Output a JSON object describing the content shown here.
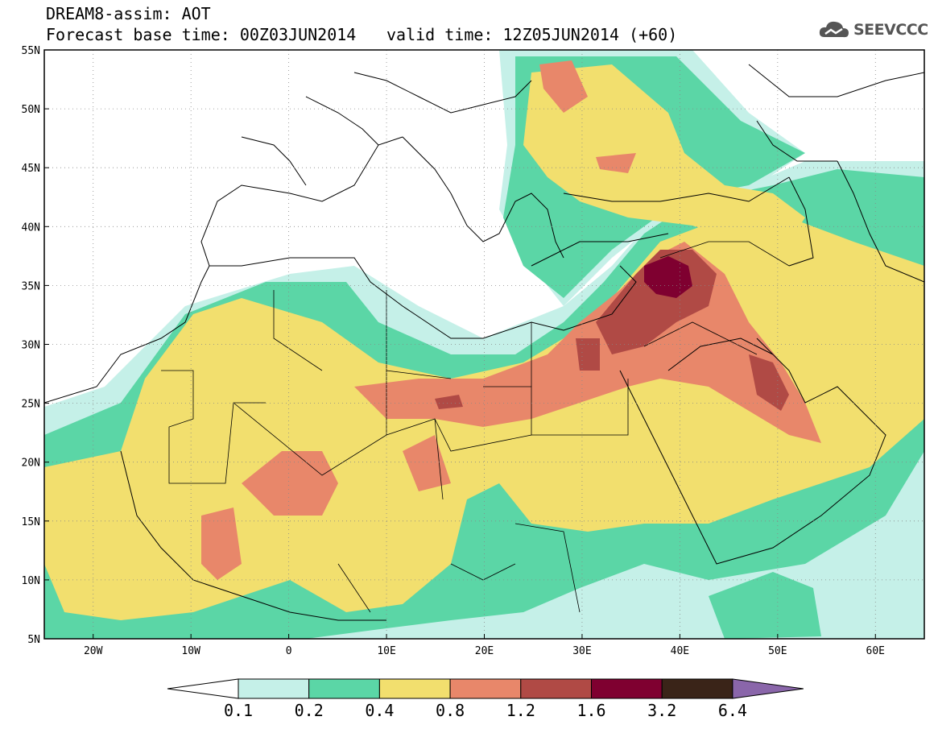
{
  "header": {
    "title": "DREAM8-assim: AOT",
    "base_time": "Forecast base time: 00Z03JUN2014",
    "valid_time": "valid time: 12Z05JUN2014 (+60)"
  },
  "logo": {
    "text": "SEEVCCC",
    "icon": "cloud-icon"
  },
  "map": {
    "lat_labels": [
      "55N",
      "50N",
      "45N",
      "40N",
      "35N",
      "30N",
      "25N",
      "20N",
      "15N",
      "10N",
      "5N"
    ],
    "lon_labels": [
      "20W",
      "10W",
      "0",
      "10E",
      "20E",
      "30E",
      "40E",
      "50E",
      "60E"
    ],
    "lon_range": [
      -25,
      65
    ],
    "lat_range": [
      5,
      55
    ],
    "grid_lines": "dotted"
  },
  "colorbar": {
    "labels": [
      "0.1",
      "0.2",
      "0.4",
      "0.8",
      "1.2",
      "1.6",
      "3.2",
      "6.4"
    ],
    "colors": [
      "#ffffff",
      "#c5f0e8",
      "#5bd6a6",
      "#f2df6e",
      "#e8876a",
      "#b04a45",
      "#7f0030",
      "#3a2418",
      "#8a66aa"
    ]
  }
}
